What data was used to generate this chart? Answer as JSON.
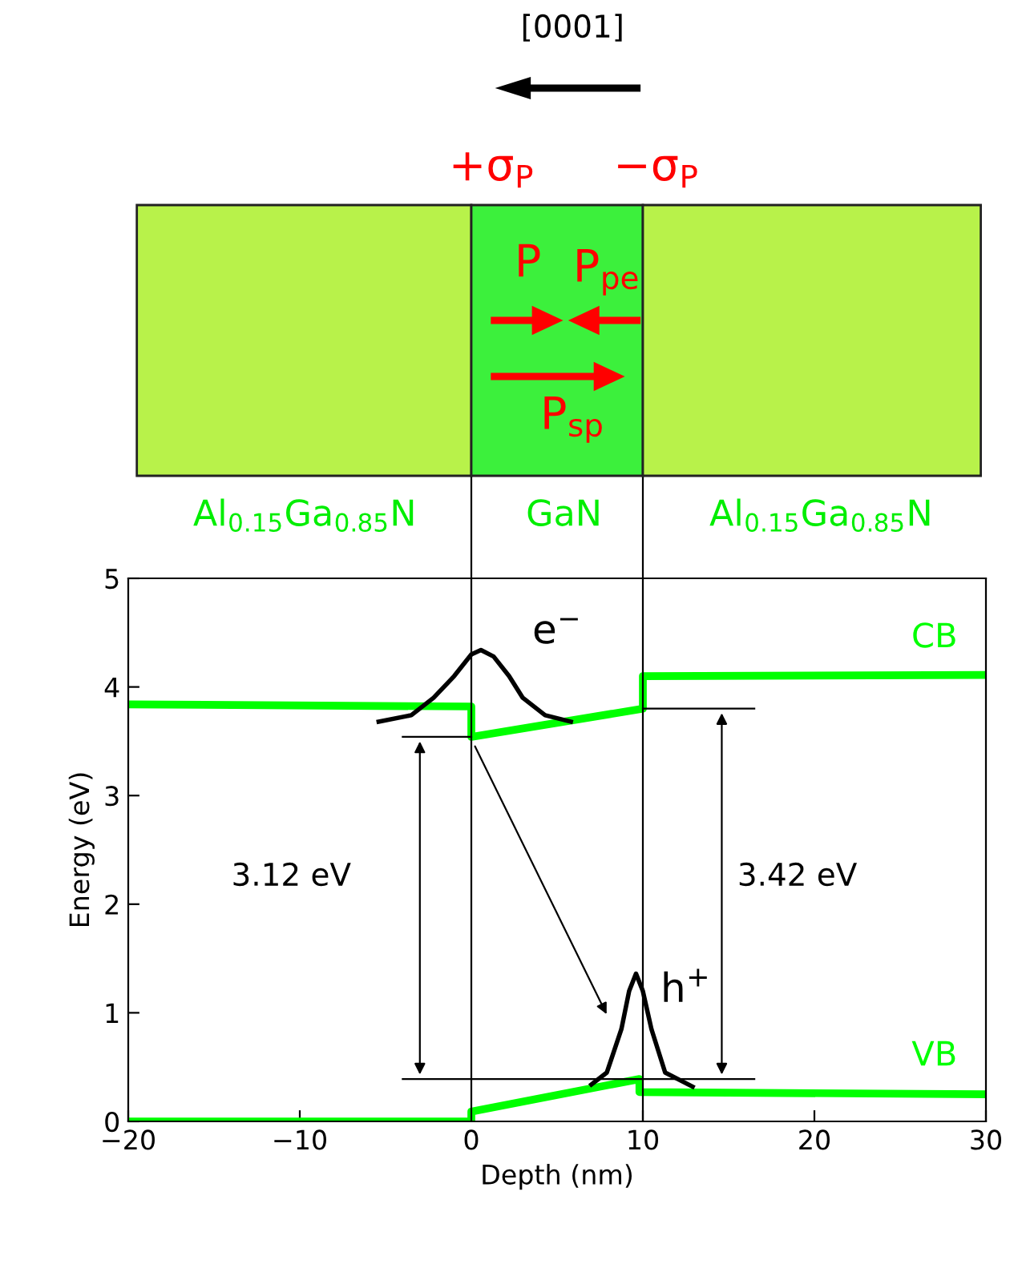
{
  "chart_data": {
    "type": "line",
    "xlabel": "Depth (nm)",
    "ylabel": "Energy (eV)",
    "xlim": [
      -20,
      30
    ],
    "ylim": [
      0,
      5
    ],
    "xticks": [
      {
        "value": -20,
        "label": "−20"
      },
      {
        "value": -10,
        "label": "−10"
      },
      0,
      10,
      20,
      30
    ],
    "yticks": [
      0,
      1,
      2,
      3,
      4,
      5
    ],
    "grid": false,
    "legend": false,
    "marker": "none",
    "line_style": "solid",
    "series": [
      {
        "name": "CB",
        "color": "#00ff00",
        "x": [
          -20,
          0,
          0,
          10,
          10,
          30
        ],
        "values": [
          3.84,
          3.82,
          3.54,
          3.8,
          4.1,
          4.11
        ]
      },
      {
        "name": "VB",
        "color": "#00ff00",
        "x": [
          -20,
          0,
          0,
          9.8,
          9.8,
          30
        ],
        "values": [
          0,
          0,
          0.09,
          0.39,
          0.27,
          0.25
        ]
      },
      {
        "color": "#000000",
        "x": [
          -5.4,
          -3.5,
          -2.2,
          -1,
          0,
          0.56,
          1.3,
          2.2,
          3,
          4.3,
          5.8
        ],
        "values": [
          3.68,
          3.74,
          3.9,
          4.1,
          4.3,
          4.34,
          4.28,
          4.1,
          3.9,
          3.74,
          3.68
        ]
      },
      {
        "color": "#000000",
        "x": [
          -4,
          0
        ],
        "values": [
          3.54,
          3.54
        ]
      },
      {
        "color": "#000000",
        "x": [
          -4,
          16.5
        ],
        "values": [
          0.39,
          0.39
        ]
      },
      {
        "color": "#000000",
        "x": [
          10,
          16.5
        ],
        "values": [
          3.8,
          3.8
        ]
      },
      {
        "color": "#000000",
        "x": [
          7,
          7.9,
          8.75,
          9.2,
          9.6,
          10,
          10.5,
          11.3,
          12.9
        ],
        "values": [
          0.34,
          0.45,
          0.85,
          1.2,
          1.36,
          1.2,
          0.85,
          0.45,
          0.32
        ]
      }
    ],
    "ref_lines": [
      {
        "axis": "x",
        "value": 0,
        "color": "#000000"
      },
      {
        "axis": "x",
        "value": 10,
        "color": "#000000"
      }
    ],
    "annotations": [
      "[0001]",
      "+σ$_{P}$",
      "−σ$_{P}$",
      "P",
      "P$_{pe}$",
      "P$_{sp}$",
      "Al$_{0.15}$Ga$_{0.85}$N",
      "GaN",
      "Al$_{0.15}$Ga$_{0.85}$N",
      "e$^{−}$",
      "h$^{+}$",
      "3.12 eV",
      "3.42 eV"
    ]
  }
}
